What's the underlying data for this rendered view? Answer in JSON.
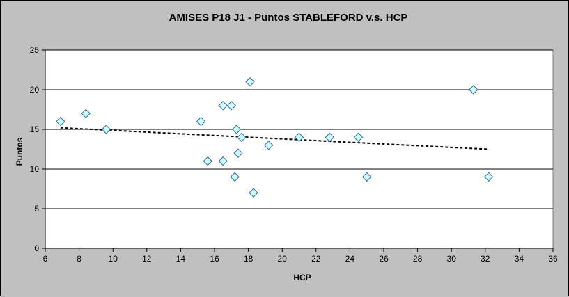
{
  "chart_data": {
    "type": "scatter",
    "title": "AMISES P18 J1 - Puntos STABLEFORD v.s. HCP",
    "xlabel": "HCP",
    "ylabel": "Puntos",
    "xlim": [
      6,
      36
    ],
    "ylim": [
      0,
      25
    ],
    "x_ticks": [
      "6",
      "8",
      "10",
      "12",
      "14",
      "16",
      "18",
      "20",
      "22",
      "24",
      "26",
      "28",
      "30",
      "32",
      "34",
      "36"
    ],
    "y_ticks": [
      "0",
      "5",
      "10",
      "15",
      "20",
      "25"
    ],
    "grid": "horizontal",
    "legend": "none",
    "points": [
      {
        "x": 6.9,
        "y": 16
      },
      {
        "x": 8.4,
        "y": 17
      },
      {
        "x": 9.6,
        "y": 15
      },
      {
        "x": 15.2,
        "y": 16
      },
      {
        "x": 15.6,
        "y": 11
      },
      {
        "x": 16.5,
        "y": 18
      },
      {
        "x": 16.5,
        "y": 11
      },
      {
        "x": 17.0,
        "y": 18
      },
      {
        "x": 17.2,
        "y": 9
      },
      {
        "x": 17.3,
        "y": 15
      },
      {
        "x": 17.4,
        "y": 12
      },
      {
        "x": 17.6,
        "y": 14
      },
      {
        "x": 18.1,
        "y": 21
      },
      {
        "x": 18.3,
        "y": 7
      },
      {
        "x": 19.2,
        "y": 13
      },
      {
        "x": 21.0,
        "y": 14
      },
      {
        "x": 22.8,
        "y": 14
      },
      {
        "x": 24.5,
        "y": 14
      },
      {
        "x": 25.0,
        "y": 9
      },
      {
        "x": 31.3,
        "y": 20
      },
      {
        "x": 32.2,
        "y": 9
      }
    ],
    "trendline": {
      "type": "linear",
      "x": [
        6.9,
        32.2
      ],
      "y": [
        15.2,
        12.5
      ]
    },
    "colors": {
      "background": "#c0c0c0",
      "plot_area": "#ffffff",
      "gridline": "#000000",
      "marker_fill": "#ccffff",
      "marker_stroke": "#336699",
      "trendline": "#000000"
    }
  }
}
